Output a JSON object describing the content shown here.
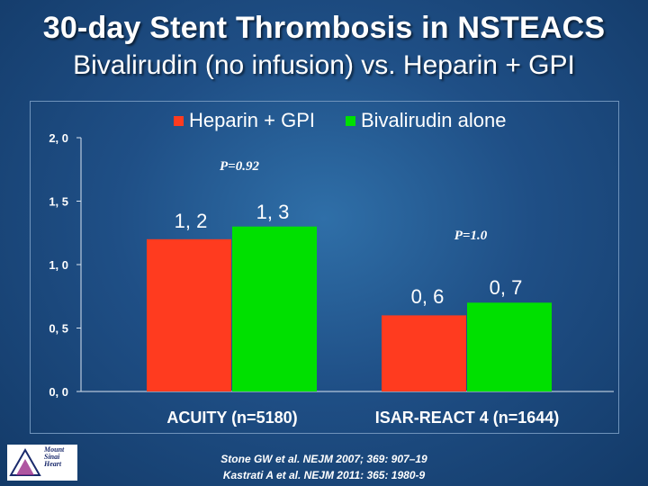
{
  "title": "30-day Stent Thrombosis in NSTEACS",
  "subtitle": "Bivalirudin (no infusion) vs. Heparin + GPI",
  "citations": [
    "Stone GW et al. NEJM 2007; 369: 907–19",
    "Kastrati A et al. NEJM 2011: 365: 1980-9"
  ],
  "logo_text": [
    "Mount",
    "Sinai",
    "Heart"
  ],
  "colors": {
    "heparin": "#ff3b1f",
    "bivalirudin": "#00e000",
    "text": "#ffffff"
  },
  "chart_data": {
    "type": "bar",
    "categories": [
      "ACUITY (n=5180)",
      "ISAR-REACT 4 (n=1644)"
    ],
    "series": [
      {
        "name": "Heparin + GPI",
        "values": [
          1.2,
          0.6
        ],
        "labels": [
          "1, 2",
          "0, 6"
        ],
        "color": "#ff3b1f"
      },
      {
        "name": "Bivalirudin alone",
        "values": [
          1.3,
          0.7
        ],
        "labels": [
          "1, 3",
          "0, 7"
        ],
        "color": "#00e000"
      }
    ],
    "yticks": [
      "0, 0",
      "0, 5",
      "1, 0",
      "1, 5",
      "2, 0"
    ],
    "ylim": [
      0,
      2.0
    ],
    "annotations": [
      "P=0.92",
      "P=1.0"
    ],
    "legend_position": "top-center",
    "grid": false
  }
}
